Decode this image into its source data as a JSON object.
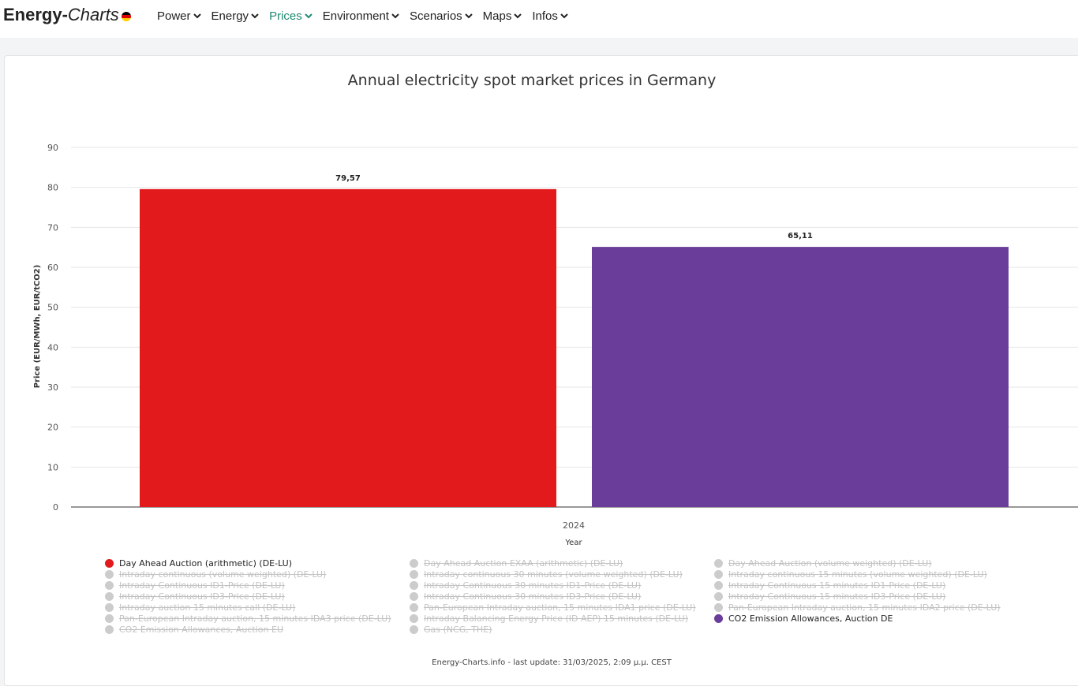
{
  "header": {
    "logo_bold": "Energy-",
    "logo_italic": "Charts",
    "nav": [
      {
        "label": "Power",
        "active": false
      },
      {
        "label": "Energy",
        "active": false
      },
      {
        "label": "Prices",
        "active": true
      },
      {
        "label": "Environment",
        "active": false
      },
      {
        "label": "Scenarios",
        "active": false
      },
      {
        "label": "Maps",
        "active": false
      },
      {
        "label": "Infos",
        "active": false
      }
    ]
  },
  "colors": {
    "accent": "#1f8a72",
    "day_ahead": "#e31a1c",
    "co2": "#6a3d9a",
    "disabled": "#cccccc"
  },
  "chart_data": {
    "type": "bar",
    "title": "Annual electricity spot market prices in Germany",
    "xlabel": "Year",
    "ylabel": "Price (EUR/MWh, EUR/tCO2)",
    "categories": [
      "2024"
    ],
    "ylim": [
      0,
      90
    ],
    "yticks": [
      "0",
      "10",
      "20",
      "30",
      "40",
      "50",
      "60",
      "70",
      "80",
      "90"
    ],
    "grid": true,
    "legend_position": "bottom",
    "series": [
      {
        "name": "Day Ahead Auction (arithmetic) (DE-LU)",
        "values": [
          79.57
        ],
        "label": "79,57",
        "color": "#e31a1c"
      },
      {
        "name": "CO2 Emission Allowances, Auction DE",
        "values": [
          65.11
        ],
        "label": "65,11",
        "color": "#6a3d9a"
      }
    ]
  },
  "legend": [
    {
      "label": "Day Ahead Auction (arithmetic) (DE-LU)",
      "on": true,
      "color": "#e31a1c"
    },
    {
      "label": "Day Ahead Auction EXAA (arithmetic) (DE-LU)",
      "on": false
    },
    {
      "label": "Day Ahead Auction (volume weighted) (DE-LU)",
      "on": false
    },
    {
      "label": "Intraday continuous (volume weighted) (DE-LU)",
      "on": false
    },
    {
      "label": "Intraday continuous 30 minutes (volume weighted) (DE-LU)",
      "on": false
    },
    {
      "label": "Intraday continuous 15 minutes (volume weighted) (DE-LU)",
      "on": false
    },
    {
      "label": "Intraday Continuous ID1-Price (DE-LU)",
      "on": false
    },
    {
      "label": "Intraday Continuous 30 minutes ID1-Price (DE-LU)",
      "on": false
    },
    {
      "label": "Intraday Continuous 15 minutes ID1-Price (DE-LU)",
      "on": false
    },
    {
      "label": "Intraday Continuous ID3-Price (DE-LU)",
      "on": false
    },
    {
      "label": "Intraday Continuous 30 minutes ID3-Price (DE-LU)",
      "on": false
    },
    {
      "label": "Intraday Continuous 15 minutes ID3-Price (DE-LU)",
      "on": false
    },
    {
      "label": "Intraday auction 15 minutes call (DE-LU)",
      "on": false
    },
    {
      "label": "Pan-European Intraday auction, 15 minutes IDA1 price (DE-LU)",
      "on": false
    },
    {
      "label": "Pan-European Intraday auction, 15 minutes IDA2 price (DE-LU)",
      "on": false
    },
    {
      "label": "Pan-European Intraday auction, 15 minutes IDA3 price (DE-LU)",
      "on": false
    },
    {
      "label": "Intraday Balancing Energy Price (ID AEP) 15 minutes (DE-LU)",
      "on": false
    },
    {
      "label": "CO2 Emission Allowances, Auction DE",
      "on": true,
      "color": "#6a3d9a"
    },
    {
      "label": "CO2 Emission Allowances, Auction EU",
      "on": false
    },
    {
      "label": "Gas (NCG, THE)",
      "on": false
    }
  ],
  "footer": "Energy-Charts.info - last update: 31/03/2025, 2:09 μ.μ. CEST"
}
